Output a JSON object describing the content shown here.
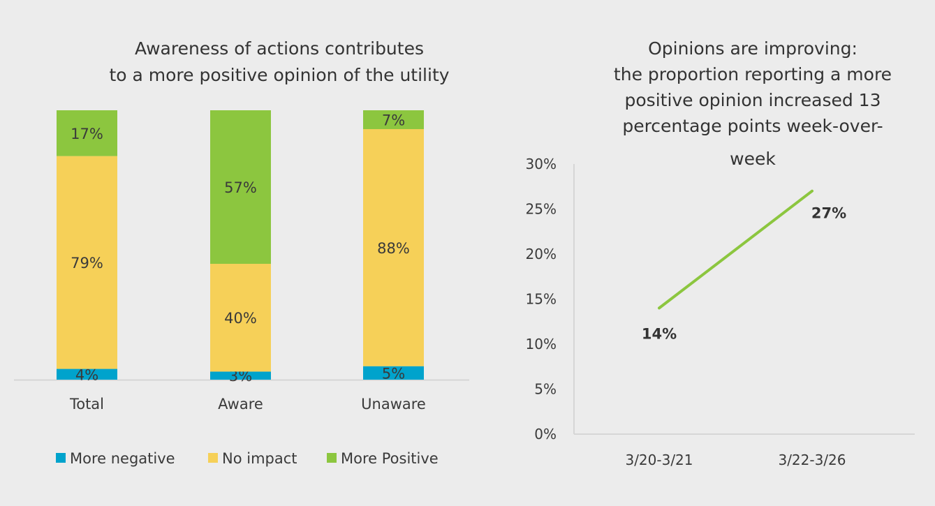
{
  "chart_data": [
    {
      "type": "bar",
      "stacked": true,
      "title_lines": [
        "Awareness of actions contributes",
        "to a more positive opinion of the utility"
      ],
      "categories": [
        "Total",
        "Aware",
        "Unaware"
      ],
      "series": [
        {
          "name": "More negative",
          "color": "#00a3cc",
          "values": [
            4,
            3,
            5
          ],
          "labels": [
            "4%",
            "3%",
            "5%"
          ]
        },
        {
          "name": "No impact",
          "color": "#f6d058",
          "values": [
            79,
            40,
            88
          ],
          "labels": [
            "79%",
            "40%",
            "88%"
          ]
        },
        {
          "name": "More Positive",
          "color": "#8cc63f",
          "values": [
            17,
            57,
            7
          ],
          "labels": [
            "17%",
            "57%",
            "7%"
          ]
        }
      ],
      "ylim": [
        0,
        100
      ],
      "legend": "bottom"
    },
    {
      "type": "line",
      "title_lines": [
        "Opinions are improving:",
        "the proportion reporting a more",
        "positive opinion increased 13",
        "percentage points week-over-",
        "week"
      ],
      "categories": [
        "3/20-3/21",
        "3/22-3/26"
      ],
      "series": [
        {
          "name": "More Positive",
          "color": "#8cc63f",
          "values": [
            14,
            27
          ],
          "labels": [
            "14%",
            "27%"
          ]
        }
      ],
      "ylim": [
        0,
        30
      ],
      "yticks": [
        0,
        5,
        10,
        15,
        20,
        25,
        30
      ],
      "ytick_labels": [
        "0%",
        "5%",
        "10%",
        "15%",
        "20%",
        "25%",
        "30%"
      ]
    }
  ]
}
